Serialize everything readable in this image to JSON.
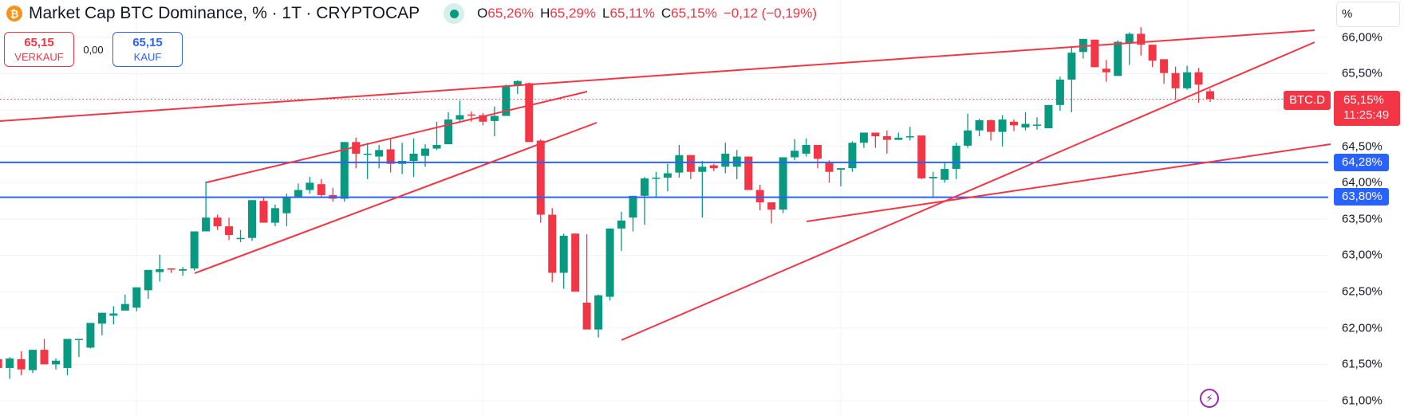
{
  "header": {
    "coin_icon": "bitcoin-icon",
    "coin_glyph": "₿",
    "title": "Market Cap BTC Dominance, % · 1T · CRYPTOCAP",
    "market_status": "open",
    "ohlc": {
      "o_label": "O",
      "o_value": "65,26%",
      "h_label": "H",
      "h_value": "65,29%",
      "l_label": "L",
      "l_value": "65,11%",
      "c_label": "C",
      "c_value": "65,15%",
      "change": "−0,12 (−0,19%)"
    }
  },
  "trade": {
    "sell_price": "65,15",
    "sell_label": "VERKAUF",
    "spread": "0,00",
    "buy_price": "65,15",
    "buy_label": "KAUF"
  },
  "axis": {
    "unit": "%",
    "labels": [
      "66,00%",
      "65,50%",
      "64,50%",
      "64,00%",
      "63,50%",
      "63,00%",
      "62,50%",
      "62,00%",
      "61,50%",
      "61,00%"
    ]
  },
  "tags": {
    "symbol": "BTC.D",
    "last_price": "65,15%",
    "countdown": "11:25:49",
    "level_1": "64,28%",
    "level_2": "63,80%"
  },
  "colors": {
    "up": "#089981",
    "down": "#f23645",
    "horizontal_line": "#2962ff",
    "trendline": "#f23645",
    "grid": "#f0f3fa"
  },
  "chart_data": {
    "type": "candlestick",
    "title": "Market Cap BTC Dominance, % · 1T · CRYPTOCAP",
    "ylabel": "%",
    "ylim": [
      60.8,
      66.5
    ],
    "y_ticks": [
      61.0,
      61.5,
      62.0,
      62.5,
      63.0,
      63.5,
      64.0,
      64.5,
      65.0,
      65.5,
      66.0
    ],
    "last": {
      "open": 65.26,
      "high": 65.29,
      "low": 65.11,
      "close": 65.15,
      "change": -0.12,
      "change_pct": -0.19
    },
    "horizontal_lines": [
      64.28,
      63.8
    ],
    "ohlc": [
      [
        61.57,
        61.62,
        61.4,
        61.45
      ],
      [
        61.45,
        61.6,
        61.3,
        61.58
      ],
      [
        61.57,
        61.68,
        61.35,
        61.43
      ],
      [
        61.42,
        61.7,
        61.38,
        61.7
      ],
      [
        61.7,
        61.85,
        61.52,
        61.5
      ],
      [
        61.5,
        61.58,
        61.43,
        61.55
      ],
      [
        61.45,
        61.85,
        61.35,
        61.85
      ],
      [
        61.85,
        61.85,
        61.6,
        61.85
      ],
      [
        61.73,
        62.07,
        61.72,
        62.07
      ],
      [
        62.06,
        62.21,
        61.9,
        62.21
      ],
      [
        62.17,
        62.3,
        62.05,
        62.2
      ],
      [
        62.24,
        62.46,
        62.24,
        62.33
      ],
      [
        62.28,
        62.56,
        62.23,
        62.56
      ],
      [
        62.52,
        62.8,
        62.4,
        62.8
      ],
      [
        62.77,
        63.01,
        62.64,
        62.81
      ],
      [
        62.82,
        62.82,
        62.76,
        62.81
      ],
      [
        62.79,
        62.84,
        62.72,
        62.81
      ],
      [
        62.82,
        63.33,
        62.79,
        63.33
      ],
      [
        63.33,
        64.02,
        63.37,
        63.52
      ],
      [
        63.52,
        63.56,
        63.35,
        63.4
      ],
      [
        63.4,
        63.52,
        63.21,
        63.28
      ],
      [
        63.24,
        63.35,
        63.18,
        63.24
      ],
      [
        63.24,
        63.76,
        63.2,
        63.76
      ],
      [
        63.75,
        63.79,
        63.45,
        63.45
      ],
      [
        63.45,
        63.7,
        63.4,
        63.65
      ],
      [
        63.58,
        63.85,
        63.4,
        63.8
      ],
      [
        63.8,
        63.99,
        63.8,
        63.9
      ],
      [
        63.9,
        64.08,
        63.85,
        64.0
      ],
      [
        63.98,
        64.05,
        63.8,
        63.83
      ],
      [
        63.83,
        63.93,
        63.74,
        63.78
      ],
      [
        63.78,
        64.56,
        63.74,
        64.56
      ],
      [
        64.56,
        64.62,
        64.2,
        64.4
      ],
      [
        64.4,
        64.55,
        64.05,
        64.4
      ],
      [
        64.36,
        64.52,
        64.2,
        64.45
      ],
      [
        64.46,
        64.6,
        64.14,
        64.26
      ],
      [
        64.26,
        64.55,
        64.12,
        64.3
      ],
      [
        64.3,
        64.61,
        64.08,
        64.4
      ],
      [
        64.37,
        64.53,
        64.22,
        64.47
      ],
      [
        64.47,
        64.84,
        64.45,
        64.52
      ],
      [
        64.53,
        64.97,
        64.53,
        64.87
      ],
      [
        64.87,
        65.13,
        64.82,
        64.93
      ],
      [
        64.94,
        64.98,
        64.84,
        64.93
      ],
      [
        64.93,
        64.96,
        64.79,
        64.84
      ],
      [
        64.85,
        65.05,
        64.64,
        64.92
      ],
      [
        64.92,
        65.35,
        64.92,
        65.33
      ],
      [
        65.33,
        65.41,
        65.22,
        65.4
      ],
      [
        65.37,
        65.38,
        64.6,
        64.56
      ],
      [
        64.58,
        64.6,
        63.45,
        63.56
      ],
      [
        63.56,
        63.65,
        62.63,
        62.76
      ],
      [
        62.76,
        63.3,
        62.54,
        63.27
      ],
      [
        63.3,
        63.3,
        62.5,
        62.5
      ],
      [
        62.35,
        63.29,
        62.23,
        61.98
      ],
      [
        61.98,
        62.46,
        61.87,
        62.45
      ],
      [
        62.43,
        63.37,
        62.38,
        63.37
      ],
      [
        63.37,
        63.6,
        63.06,
        63.48
      ],
      [
        63.52,
        63.75,
        63.33,
        63.82
      ],
      [
        63.82,
        64.08,
        63.42,
        64.06
      ],
      [
        64.06,
        64.15,
        63.8,
        64.07
      ],
      [
        64.07,
        64.26,
        63.88,
        64.13
      ],
      [
        64.14,
        64.52,
        64.07,
        64.38
      ],
      [
        64.38,
        64.35,
        64.05,
        64.15
      ],
      [
        64.15,
        64.3,
        63.52,
        64.22
      ],
      [
        64.24,
        64.26,
        64.16,
        64.2
      ],
      [
        64.22,
        64.55,
        64.13,
        64.4
      ],
      [
        64.22,
        64.45,
        64.05,
        64.36
      ],
      [
        64.36,
        64.36,
        64.04,
        63.9
      ],
      [
        63.9,
        63.97,
        63.62,
        63.73
      ],
      [
        63.73,
        63.7,
        63.44,
        63.63
      ],
      [
        63.63,
        64.35,
        63.58,
        64.35
      ],
      [
        64.35,
        64.6,
        64.31,
        64.44
      ],
      [
        64.4,
        64.61,
        64.36,
        64.52
      ],
      [
        64.52,
        64.49,
        64.2,
        64.33
      ],
      [
        64.28,
        64.31,
        64.0,
        64.15
      ],
      [
        64.18,
        64.2,
        63.95,
        64.2
      ],
      [
        64.2,
        64.57,
        64.15,
        64.55
      ],
      [
        64.55,
        64.68,
        64.48,
        64.69
      ],
      [
        64.69,
        64.68,
        64.48,
        64.64
      ],
      [
        64.64,
        64.72,
        64.4,
        64.59
      ],
      [
        64.59,
        64.69,
        64.6,
        64.62
      ],
      [
        64.64,
        64.77,
        64.58,
        64.64
      ],
      [
        64.65,
        64.64,
        64.05,
        64.06
      ],
      [
        64.06,
        64.15,
        63.8,
        64.08
      ],
      [
        64.04,
        64.29,
        64.0,
        64.19
      ],
      [
        64.19,
        64.55,
        64.05,
        64.51
      ],
      [
        64.51,
        64.95,
        64.48,
        64.72
      ],
      [
        64.72,
        64.88,
        64.64,
        64.86
      ],
      [
        64.86,
        64.87,
        64.58,
        64.7
      ],
      [
        64.7,
        64.93,
        64.5,
        64.87
      ],
      [
        64.84,
        64.87,
        64.71,
        64.79
      ],
      [
        64.76,
        64.97,
        64.72,
        64.81
      ],
      [
        64.8,
        64.9,
        64.73,
        64.8
      ],
      [
        64.75,
        65.07,
        64.75,
        65.07
      ],
      [
        65.07,
        65.46,
        64.99,
        65.42
      ],
      [
        65.42,
        65.87,
        64.97,
        65.79
      ],
      [
        65.8,
        65.96,
        65.71,
        65.98
      ],
      [
        65.97,
        65.97,
        65.59,
        65.59
      ],
      [
        65.57,
        65.69,
        65.39,
        65.52
      ],
      [
        65.47,
        65.96,
        65.48,
        65.94
      ],
      [
        65.92,
        66.07,
        65.62,
        66.05
      ],
      [
        66.05,
        66.14,
        65.75,
        65.9
      ],
      [
        65.9,
        65.82,
        65.59,
        65.68
      ],
      [
        65.7,
        65.69,
        65.36,
        65.51
      ],
      [
        65.51,
        65.6,
        65.14,
        65.3
      ],
      [
        65.3,
        65.61,
        65.28,
        65.52
      ],
      [
        65.52,
        65.58,
        65.1,
        65.35
      ],
      [
        65.26,
        65.29,
        65.11,
        65.15
      ]
    ]
  }
}
